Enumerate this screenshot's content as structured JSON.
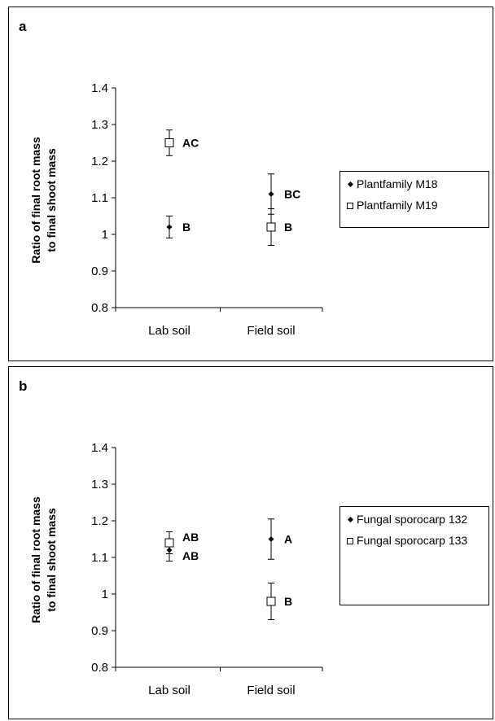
{
  "chart_data": [
    {
      "type": "scatter",
      "panel_label": "a",
      "ylabel": "Ratio of final root mass to final shoot mass",
      "ylabel_lines": [
        "Ratio of final root mass",
        "to final shoot mass"
      ],
      "xlabel": "",
      "categories": [
        "Lab soil",
        "Field soil"
      ],
      "ylim": [
        0.8,
        1.4
      ],
      "yticks": [
        "0.8",
        "0.9",
        "1",
        "1.1",
        "1.2",
        "1.3",
        "1.4"
      ],
      "grid": false,
      "legend_position": "right",
      "series": [
        {
          "name": "Plantfamily M18",
          "marker": "diamond",
          "values": [
            1.02,
            1.11
          ],
          "error": [
            0.03,
            0.055
          ],
          "labels": [
            "B",
            "BC"
          ]
        },
        {
          "name": "Plantfamily M19",
          "marker": "open-square",
          "values": [
            1.25,
            1.02
          ],
          "error": [
            0.035,
            0.05
          ],
          "labels": [
            "AC",
            "B"
          ]
        }
      ]
    },
    {
      "type": "scatter",
      "panel_label": "b",
      "ylabel": "Ratio of final root mass to final shoot mass",
      "ylabel_lines": [
        "Ratio of final root mass",
        "to final shoot mass"
      ],
      "xlabel": "",
      "categories": [
        "Lab soil",
        "Field soil"
      ],
      "ylim": [
        0.8,
        1.4
      ],
      "yticks": [
        "0.8",
        "0.9",
        "1",
        "1.1",
        "1.2",
        "1.3",
        "1.4"
      ],
      "grid": false,
      "legend_position": "right",
      "series": [
        {
          "name": "Fungal sporocarp 132",
          "marker": "diamond",
          "values": [
            1.12,
            1.15
          ],
          "error": [
            0.03,
            0.055
          ],
          "labels": [
            "AB",
            "A"
          ]
        },
        {
          "name": "Fungal sporocarp 133",
          "marker": "open-square",
          "values": [
            1.14,
            0.98
          ],
          "error": [
            0.03,
            0.05
          ],
          "labels": [
            "AB",
            "B"
          ]
        }
      ]
    }
  ]
}
